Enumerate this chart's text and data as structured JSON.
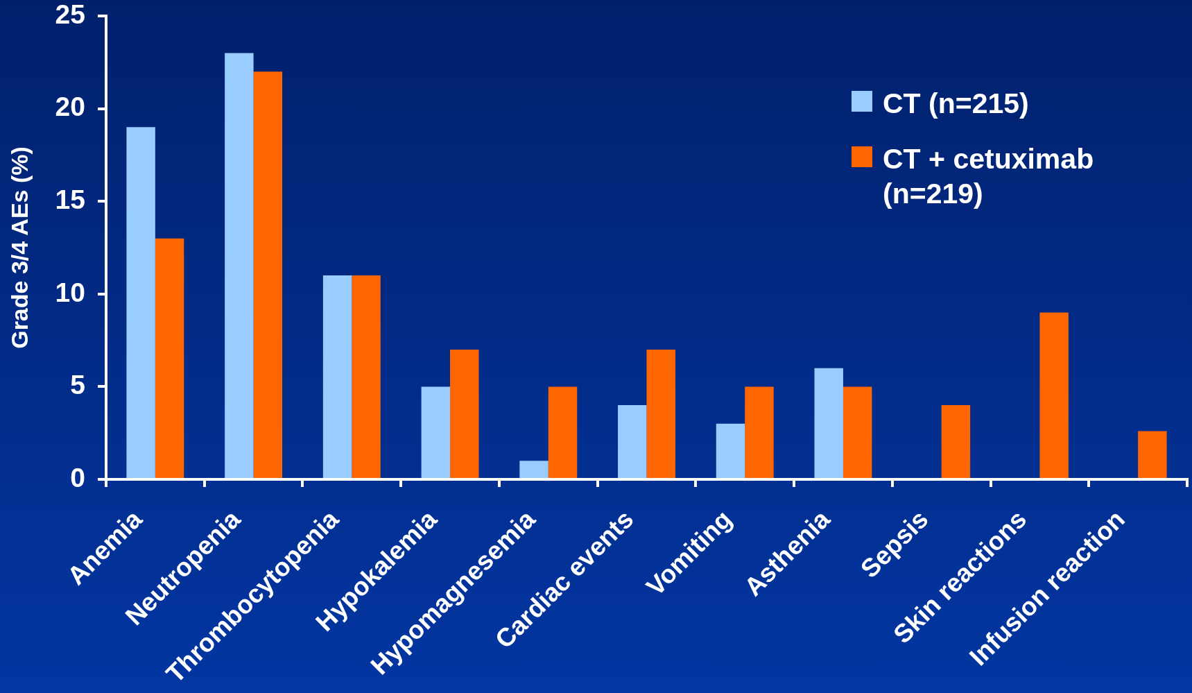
{
  "chart_data": {
    "type": "bar",
    "categories": [
      "Anemia",
      "Neutropenia",
      "Thrombocytopenia",
      "Hypokalemia",
      "Hypomagnesemia",
      "Cardiac events",
      "Vomiting",
      "Asthenia",
      "Sepsis",
      "Skin reactions",
      "Infusion reaction"
    ],
    "series": [
      {
        "name": "CT (n=215)",
        "color": "#99ccff",
        "values": [
          19,
          23,
          11,
          5,
          1,
          4,
          3,
          6,
          null,
          null,
          null
        ]
      },
      {
        "name": "CT + cetuximab (n=219)",
        "color": "#ff6600",
        "values": [
          13,
          22,
          11,
          7,
          5,
          7,
          5,
          5,
          4,
          9,
          2.6
        ]
      }
    ],
    "ylabel": "Grade 3/4 AEs (%)",
    "ylim": [
      0,
      25
    ],
    "yticks": [
      0,
      5,
      10,
      15,
      20,
      25
    ],
    "legend": "top right"
  }
}
